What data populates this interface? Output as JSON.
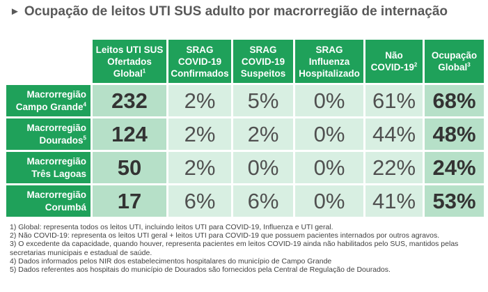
{
  "title": {
    "arrow": "►",
    "text": "Ocupação de leitos UTI SUS adulto por macrorregião de internação"
  },
  "table": {
    "columns": [
      {
        "line1": "Leitos UTI SUS",
        "line2": "Ofertados",
        "line3": "Global",
        "sup": "1"
      },
      {
        "line1": "SRAG",
        "line2": "COVID-19",
        "line3": "Confirmados",
        "sup": ""
      },
      {
        "line1": "SRAG",
        "line2": "COVID-19",
        "line3": "Suspeitos",
        "sup": ""
      },
      {
        "line1": "SRAG",
        "line2": "Influenza",
        "line3": "Hospitalizado",
        "sup": ""
      },
      {
        "line1": "Não",
        "line2": "",
        "line3": "COVID-19",
        "sup": "2"
      },
      {
        "line1": "Ocupação",
        "line2": "",
        "line3": "Global",
        "sup": "3"
      }
    ],
    "rows": [
      {
        "line1": "Macrorregião",
        "line2": "Campo Grande",
        "sup": "4",
        "values": [
          "232",
          "2%",
          "5%",
          "0%",
          "61%",
          "68%"
        ]
      },
      {
        "line1": "Macrorregião",
        "line2": "Dourados",
        "sup": "5",
        "values": [
          "124",
          "2%",
          "2%",
          "0%",
          "44%",
          "48%"
        ]
      },
      {
        "line1": "Macrorregião",
        "line2": "Três Lagoas",
        "sup": "",
        "values": [
          "50",
          "2%",
          "0%",
          "0%",
          "22%",
          "24%"
        ]
      },
      {
        "line1": "Macrorregião",
        "line2": "Corumbá",
        "sup": "",
        "values": [
          "17",
          "6%",
          "6%",
          "0%",
          "41%",
          "53%"
        ]
      }
    ]
  },
  "notes": [
    "1) Global: representa todos os leitos UTI, incluindo leitos UTI para COVID-19, Influenza e UTI geral.",
    "2) Não COVID-19: representa os leitos UTI geral + leitos UTI para COVID-19 que possuem pacientes internados por outros agravos.",
    "3) O excedente da capacidade, quando houver, representa pacientes em leitos COVID-19 ainda não habilitados pelo SUS, mantidos pelas secretarias municipais e estadual de saúde.",
    "4) Dados informados pelos NIR dos estabelecimentos hospitalares do município de Campo Grande",
    "5) Dados referentes aos hospitais do município de Dourados são fornecidos pela Central de Regulação de Dourados."
  ],
  "colors": {
    "header_green": "#1fa15a",
    "cell_light": "#d8efe2",
    "cell_dark": "#b6e0c8",
    "title_gray": "#595959"
  }
}
